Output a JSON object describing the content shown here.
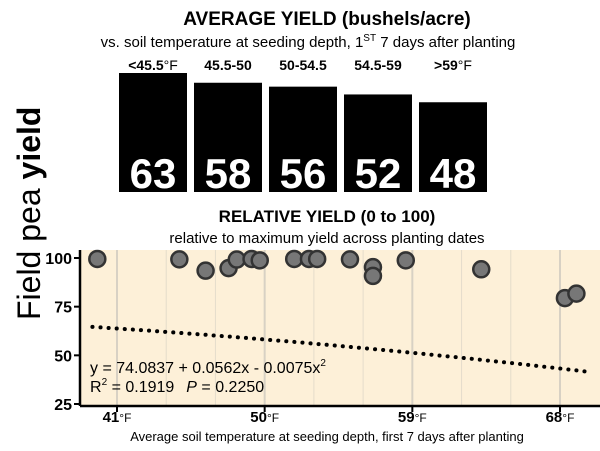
{
  "side_label": {
    "plain": "Field pea ",
    "bold": "yield"
  },
  "chart_data": [
    {
      "type": "bar",
      "title": "AVERAGE YIELD (bushels/acre)",
      "subtitle": {
        "before": "vs. soil temperature at seeding depth, 1",
        "sup": "ST",
        "after": " 7 days after planting"
      },
      "categories": [
        {
          "label": "<45.5",
          "unit": "°F"
        },
        {
          "label": "45.5-50",
          "unit": ""
        },
        {
          "label": "50-54.5",
          "unit": ""
        },
        {
          "label": "54.5-59",
          "unit": ""
        },
        {
          "label": ">59",
          "unit": "°F"
        }
      ],
      "values": [
        63,
        58,
        56,
        52,
        48
      ],
      "color": "#000000",
      "label_color": "#ffffff"
    },
    {
      "type": "scatter",
      "title": "RELATIVE YIELD (0 to 100)",
      "subtitle": "relative to maximum yield across planting dates",
      "xlabel": "Average soil temperature at seeding depth, first 7 days after planting",
      "xlim": [
        38.5,
        69.5
      ],
      "ylim": [
        25,
        105
      ],
      "yticks": [
        100,
        75,
        50,
        25
      ],
      "xticks": [
        {
          "value": 41,
          "label": "41",
          "unit": "°F"
        },
        {
          "value": 50,
          "label": "50",
          "unit": "°F"
        },
        {
          "value": 59,
          "label": "59",
          "unit": "°F"
        },
        {
          "value": 68,
          "label": "68",
          "unit": "°F"
        }
      ],
      "minor_grid_x": [
        44,
        47,
        53,
        56,
        62,
        65
      ],
      "background": "#fdf0d8",
      "point_color": "#777777",
      "points": [
        {
          "x": 39.8,
          "y": 99.5
        },
        {
          "x": 44.8,
          "y": 99.3
        },
        {
          "x": 46.4,
          "y": 93.5
        },
        {
          "x": 47.8,
          "y": 94.8
        },
        {
          "x": 48.3,
          "y": 99.2
        },
        {
          "x": 49.2,
          "y": 99.5
        },
        {
          "x": 49.7,
          "y": 98.8
        },
        {
          "x": 51.8,
          "y": 99.5
        },
        {
          "x": 52.7,
          "y": 99.5
        },
        {
          "x": 53.2,
          "y": 99.5
        },
        {
          "x": 55.2,
          "y": 99.3
        },
        {
          "x": 56.6,
          "y": 95.3
        },
        {
          "x": 56.6,
          "y": 90.8
        },
        {
          "x": 58.6,
          "y": 98.8
        },
        {
          "x": 63.2,
          "y": 94.2
        },
        {
          "x": 68.3,
          "y": 79.4
        },
        {
          "x": 69.0,
          "y": 81.7
        }
      ],
      "trend": {
        "a": 74.0837,
        "b": 0.0562,
        "c": -0.0075
      },
      "annotation": {
        "equation": {
          "text": "y = 74.0837 + 0.0562x - 0.0075x",
          "sup": "2"
        },
        "stats": {
          "r_label": "R",
          "r_sup": "2",
          "r_value": " = 0.1919",
          "p_label": "P",
          "p_value": " = 0.2250"
        }
      }
    }
  ]
}
